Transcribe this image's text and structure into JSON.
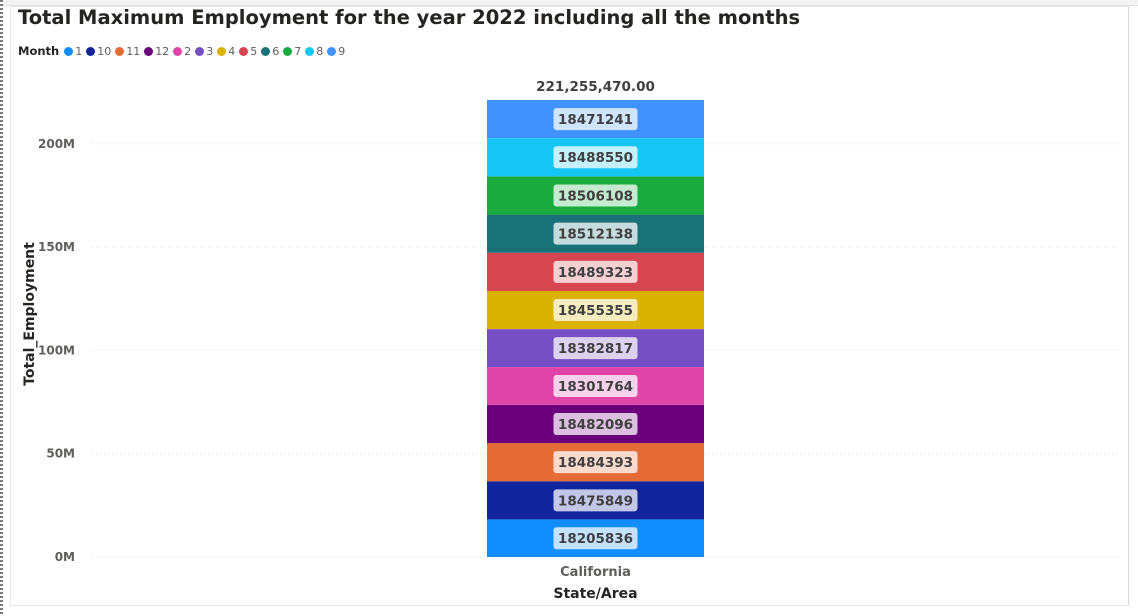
{
  "chart_data": {
    "type": "bar",
    "stacked": true,
    "title": "Total Maximum Employment for the year 2022 including all the months",
    "xlabel": "State/Area",
    "ylabel": "Total_Employment",
    "categories": [
      "California"
    ],
    "ylim": [
      0,
      221255470
    ],
    "yticks": [
      {
        "value": 0,
        "label": "0M"
      },
      {
        "value": 50000000,
        "label": "50M"
      },
      {
        "value": 100000000,
        "label": "100M"
      },
      {
        "value": 150000000,
        "label": "150M"
      },
      {
        "value": 200000000,
        "label": "200M"
      }
    ],
    "grid": true,
    "legend": {
      "title": "Month",
      "placement": "top-left"
    },
    "total_label": "221,255,470.00",
    "series": [
      {
        "name": "1",
        "color": "#118DFF",
        "values": [
          18205836
        ]
      },
      {
        "name": "10",
        "color": "#12239E",
        "values": [
          18475849
        ]
      },
      {
        "name": "11",
        "color": "#E66C37",
        "values": [
          18484393
        ]
      },
      {
        "name": "12",
        "color": "#6B007B",
        "values": [
          18482096
        ]
      },
      {
        "name": "2",
        "color": "#E044A7",
        "values": [
          18301764
        ]
      },
      {
        "name": "3",
        "color": "#744EC2",
        "values": [
          18382817
        ]
      },
      {
        "name": "4",
        "color": "#D9B300",
        "values": [
          18455355
        ]
      },
      {
        "name": "5",
        "color": "#D64550",
        "values": [
          18489323
        ]
      },
      {
        "name": "6",
        "color": "#197278",
        "values": [
          18512138
        ]
      },
      {
        "name": "7",
        "color": "#1AAB40",
        "values": [
          18506108
        ]
      },
      {
        "name": "8",
        "color": "#15C6F4",
        "values": [
          18488550
        ]
      },
      {
        "name": "9",
        "color": "#4092FF",
        "values": [
          18471241
        ]
      }
    ]
  }
}
